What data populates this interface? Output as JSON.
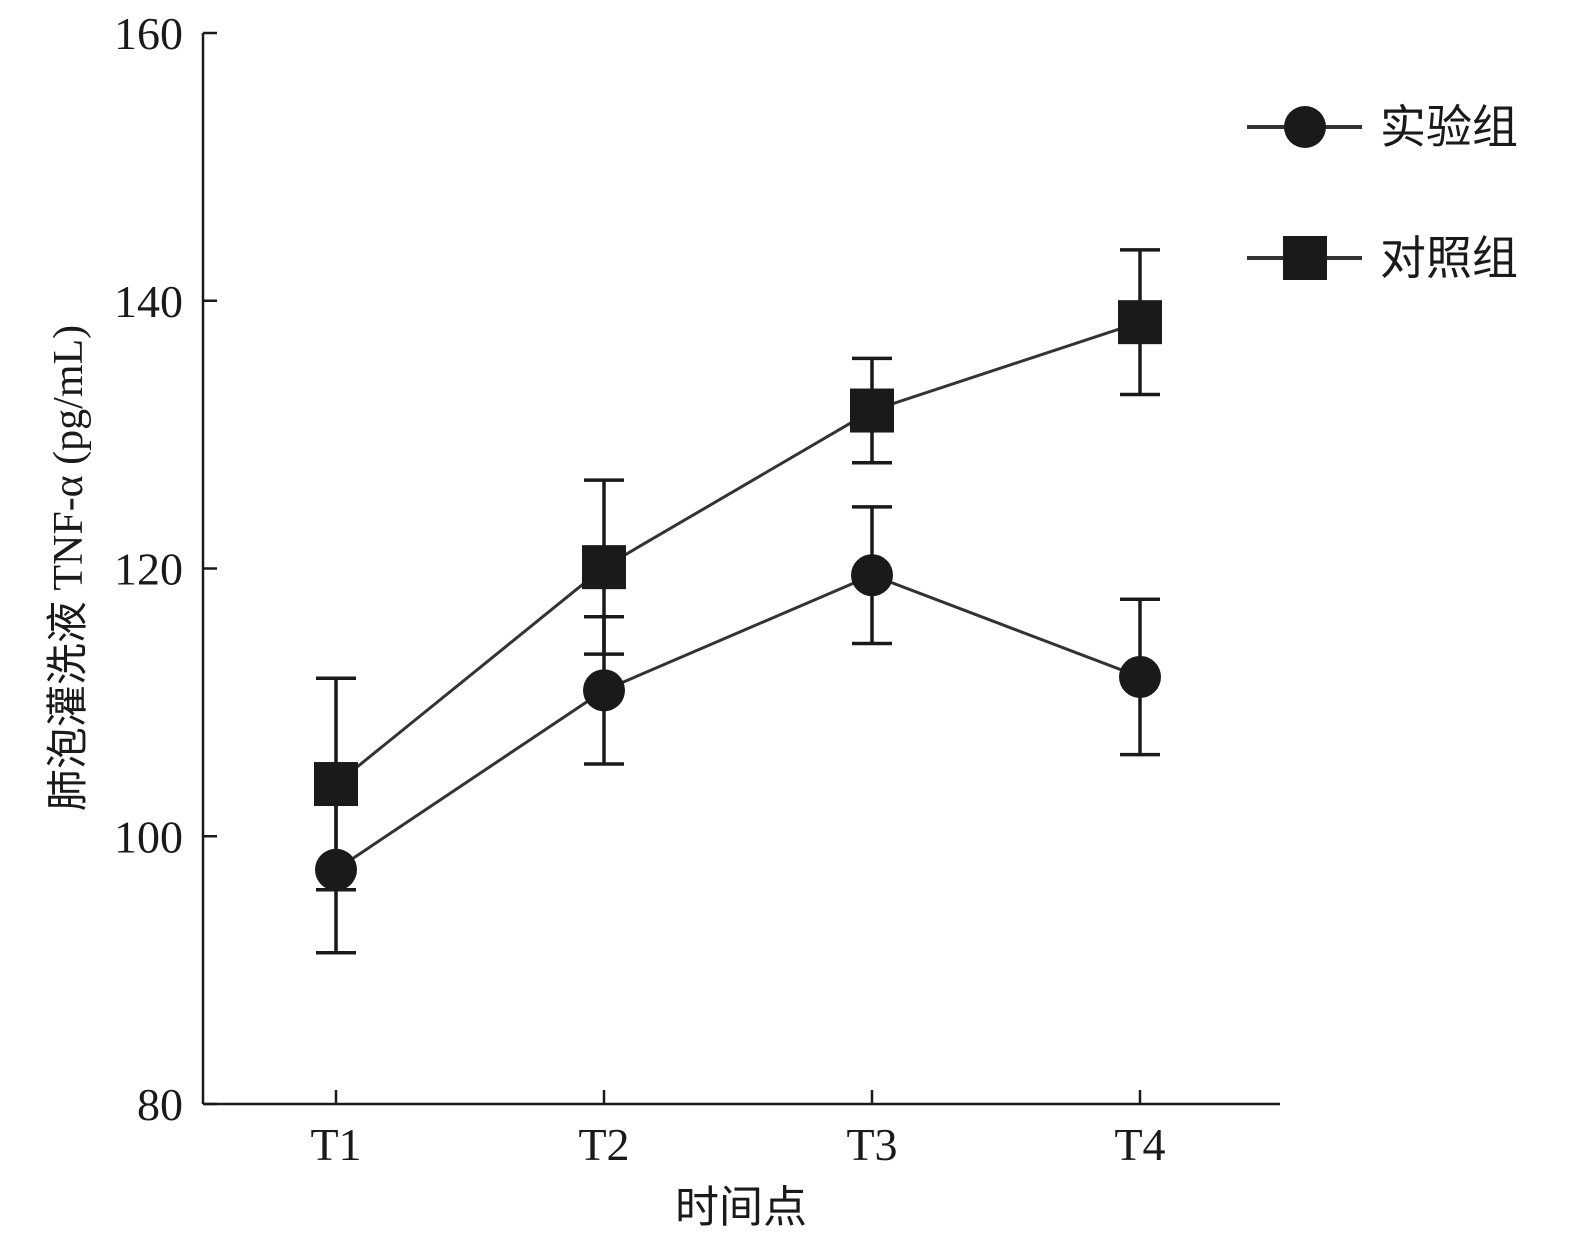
{
  "chart_data": {
    "type": "line",
    "title": "",
    "xlabel": "时间点",
    "ylabel": "肺泡灌洗液 TNF-α (pg/mL)",
    "categories": [
      "T1",
      "T2",
      "T3",
      "T4"
    ],
    "ylim": [
      80,
      160
    ],
    "yticks": [
      80,
      100,
      120,
      140,
      160
    ],
    "grid": false,
    "legend_position": "top-right",
    "series": [
      {
        "name": "实验组",
        "marker": "circle",
        "values": [
          97.5,
          110.9,
          119.5,
          111.9
        ],
        "errors": [
          6.2,
          5.5,
          5.1,
          5.8
        ]
      },
      {
        "name": "对照组",
        "marker": "square",
        "values": [
          103.9,
          120.1,
          131.8,
          138.4
        ],
        "errors": [
          7.9,
          6.5,
          3.9,
          5.4
        ]
      }
    ]
  }
}
